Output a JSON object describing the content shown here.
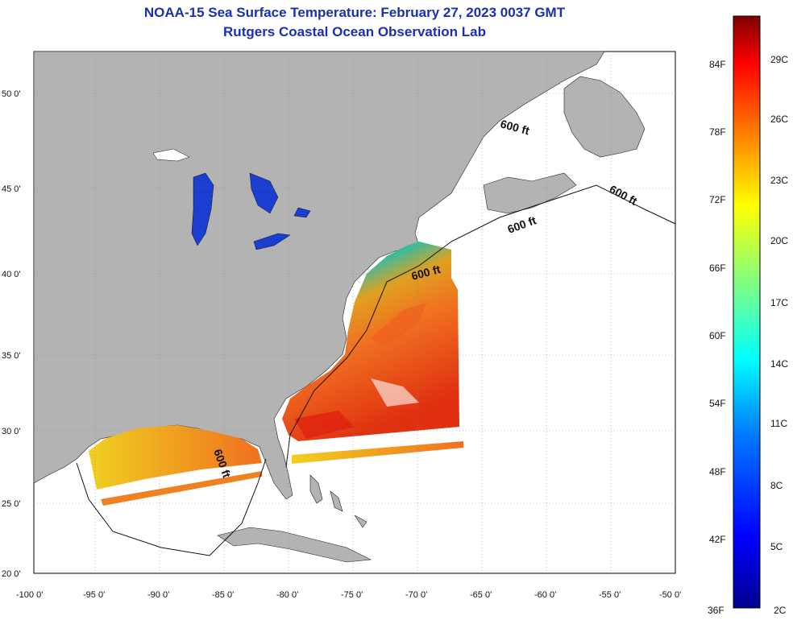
{
  "header": {
    "title": "NOAA-15 Sea Surface Temperature:  February 27, 2023 0037 GMT",
    "subtitle": "Rutgers Coastal Ocean Observation Lab"
  },
  "map": {
    "lon_ticks": [
      "-100 0'",
      "-95 0'",
      "-90 0'",
      "-85 0'",
      "-80 0'",
      "-75 0'",
      "-70 0'",
      "-65 0'",
      "-60 0'",
      "-55 0'",
      "-50 0'"
    ],
    "lat_ticks": [
      "50 0'",
      "45 0'",
      "40 0'",
      "35 0'",
      "30 0'",
      "25 0'",
      "20 0'"
    ],
    "contour_labels": [
      "600 ft",
      "600 ft",
      "600 ft",
      "600 ft",
      "600 ft"
    ],
    "colors": {
      "land": "#b3b3b3",
      "ocean": "#ffffff",
      "grid": "#888888"
    }
  },
  "colorbar": {
    "f_labels": [
      "84F",
      "78F",
      "72F",
      "66F",
      "60F",
      "54F",
      "48F",
      "42F",
      "36F"
    ],
    "c_labels": [
      "29C",
      "26C",
      "23C",
      "20C",
      "17C",
      "14C",
      "11C",
      "8C",
      "5C",
      "2C"
    ]
  }
}
